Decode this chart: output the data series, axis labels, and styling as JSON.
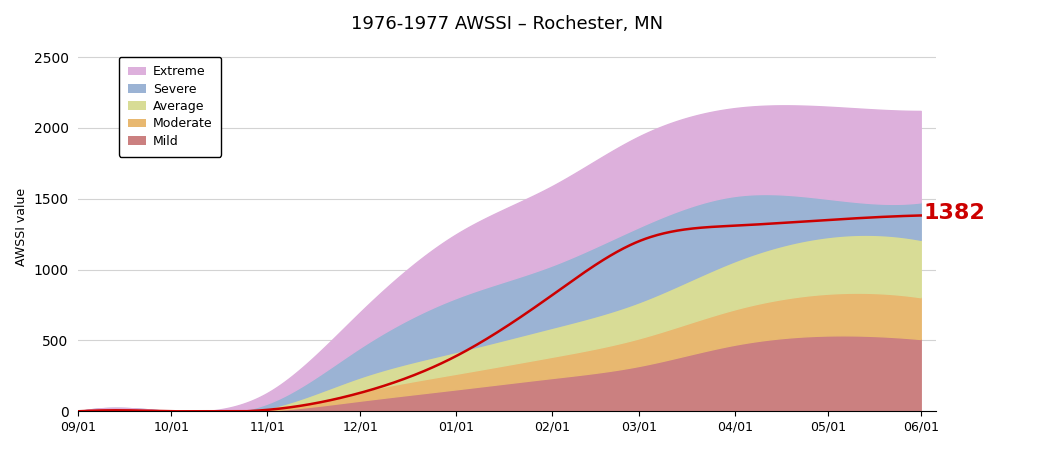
{
  "title": "1976-1977 AWSSI – Rochester, MN",
  "ylabel": "AWSSI value",
  "ylim": [
    0,
    2600
  ],
  "yticks": [
    0,
    500,
    1000,
    1500,
    2000,
    2500
  ],
  "final_value": 1382,
  "legend_labels": [
    "Extreme",
    "Severe",
    "Average",
    "Moderate",
    "Mild"
  ],
  "band_colors": [
    "#DDB0DC",
    "#9BB3D4",
    "#D8DC96",
    "#E8B870",
    "#CB8080"
  ],
  "line_color": "#CC0000",
  "background_color": "#ffffff",
  "x_tick_labels": [
    "09/01",
    "10/01",
    "11/01",
    "12/01",
    "01/01",
    "02/01",
    "03/01",
    "04/01",
    "05/01",
    "06/01"
  ],
  "x_tick_positions": [
    0,
    30,
    61,
    91,
    122,
    153,
    181,
    212,
    242,
    272
  ],
  "x_nodes": [
    0,
    30,
    61,
    91,
    122,
    153,
    181,
    212,
    242,
    272
  ],
  "mild_upper": [
    0,
    0,
    5,
    75,
    155,
    235,
    320,
    470,
    535,
    510
  ],
  "moderate_upper": [
    0,
    0,
    12,
    140,
    265,
    385,
    515,
    720,
    830,
    805
  ],
  "average_upper": [
    0,
    0,
    22,
    240,
    420,
    590,
    770,
    1060,
    1230,
    1210
  ],
  "severe_upper": [
    0,
    0,
    55,
    450,
    800,
    1030,
    1300,
    1520,
    1500,
    1475
  ],
  "extreme_upper": [
    0,
    0,
    130,
    700,
    1250,
    1590,
    1940,
    2140,
    2150,
    2120
  ],
  "actual_line": [
    0,
    0,
    10,
    130,
    390,
    820,
    1200,
    1310,
    1350,
    1382
  ]
}
